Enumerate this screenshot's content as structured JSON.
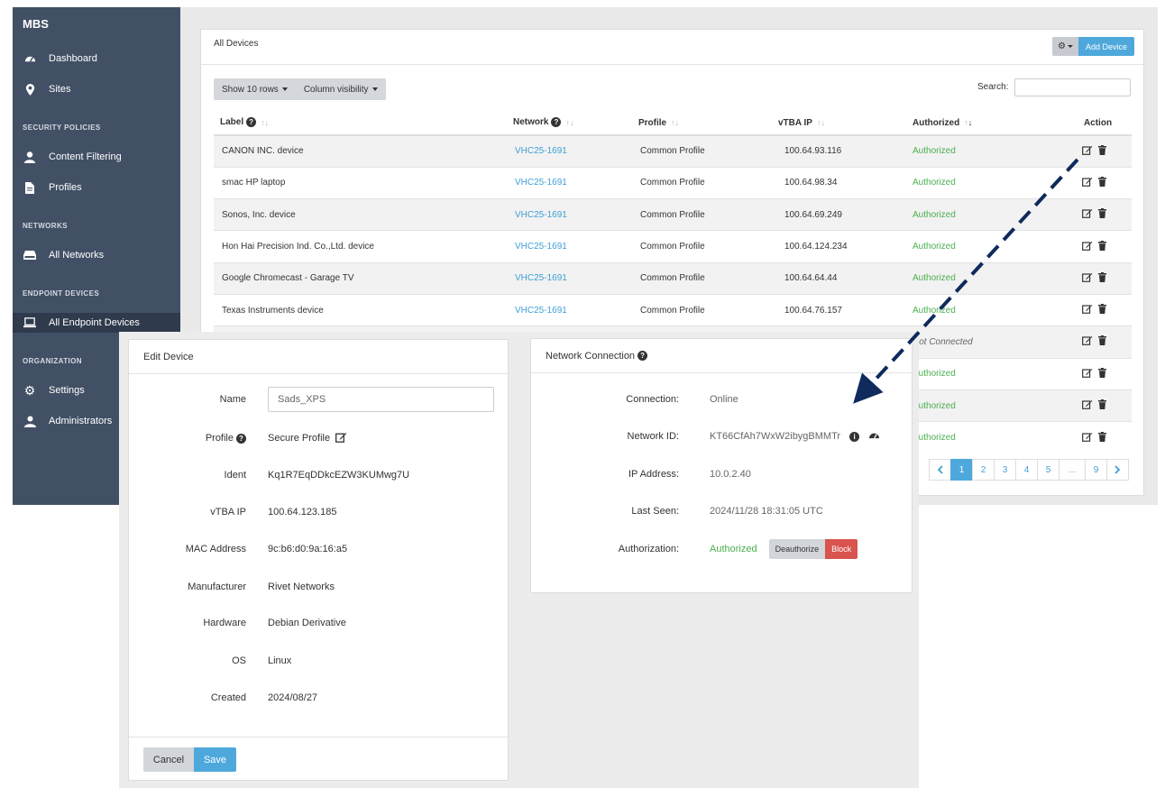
{
  "sidebar": {
    "brand": "MBS",
    "items": [
      {
        "label": "Dashboard",
        "icon": "dashboard-icon"
      },
      {
        "label": "Sites",
        "icon": "map-marker-icon"
      }
    ],
    "sections": [
      {
        "title": "SECURITY POLICIES",
        "items": [
          {
            "label": "Content Filtering",
            "icon": "user-icon"
          },
          {
            "label": "Profiles",
            "icon": "file-icon"
          }
        ]
      },
      {
        "title": "NETWORKS",
        "items": [
          {
            "label": "All Networks",
            "icon": "hdd-icon"
          }
        ]
      },
      {
        "title": "ENDPOINT DEVICES",
        "items": [
          {
            "label": "All Endpoint Devices",
            "icon": "laptop-icon"
          }
        ]
      },
      {
        "title": "ORGANIZATION",
        "items": [
          {
            "label": "Settings",
            "icon": "gear-icon"
          },
          {
            "label": "Administrators",
            "icon": "users-icon"
          }
        ]
      }
    ]
  },
  "devices_panel": {
    "title": "All Devices",
    "add_label": "Add Device",
    "show_rows_label": "Show 10 rows",
    "column_visibility_label": "Column visibility",
    "search_label": "Search:",
    "columns": [
      "Label",
      "Network",
      "Profile",
      "vTBA IP",
      "Authorized",
      "Action"
    ],
    "rows": [
      {
        "label": "CANON INC. device",
        "network": "VHC25-1691",
        "profile": "Common Profile",
        "ip": "100.64.93.116",
        "auth": "Authorized"
      },
      {
        "label": "smac HP laptop",
        "network": "VHC25-1691",
        "profile": "Common Profile",
        "ip": "100.64.98.34",
        "auth": "Authorized"
      },
      {
        "label": "Sonos, Inc. device",
        "network": "VHC25-1691",
        "profile": "Common Profile",
        "ip": "100.64.69.249",
        "auth": "Authorized"
      },
      {
        "label": "Hon Hai Precision Ind. Co.,Ltd. device",
        "network": "VHC25-1691",
        "profile": "Common Profile",
        "ip": "100.64.124.234",
        "auth": "Authorized"
      },
      {
        "label": "Google Chromecast - Garage TV",
        "network": "VHC25-1691",
        "profile": "Common Profile",
        "ip": "100.64.64.44",
        "auth": "Authorized"
      },
      {
        "label": "Texas Instruments device",
        "network": "VHC25-1691",
        "profile": "Common Profile",
        "ip": "100.64.76.157",
        "auth": "Authorized"
      },
      {
        "label": "",
        "network": "",
        "profile": "",
        "ip": "",
        "auth": "Not Connected"
      },
      {
        "label": "",
        "network": "",
        "profile": "",
        "ip": "",
        "auth": "Authorized"
      },
      {
        "label": "",
        "network": "",
        "profile": "",
        "ip": "",
        "auth": "Authorized"
      },
      {
        "label": "",
        "network": "",
        "profile": "",
        "ip": "",
        "auth": "Authorized"
      }
    ],
    "pagination": [
      "1",
      "2",
      "3",
      "4",
      "5",
      "...",
      "9"
    ]
  },
  "edit_device": {
    "title": "Edit Device",
    "fields": [
      {
        "label": "Name",
        "value": "Sads_XPS"
      },
      {
        "label": "Profile",
        "value": "Secure Profile"
      },
      {
        "label": "Ident",
        "value": "Kq1R7EqDDkcEZW3KUMwg7U"
      },
      {
        "label": "vTBA IP",
        "value": "100.64.123.185"
      },
      {
        "label": "MAC Address",
        "value": "9c:b6:d0:9a:16:a5"
      },
      {
        "label": "Manufacturer",
        "value": "Rivet Networks"
      },
      {
        "label": "Hardware",
        "value": "Debian Derivative"
      },
      {
        "label": "OS",
        "value": "Linux"
      },
      {
        "label": "Created",
        "value": "2024/08/27"
      }
    ],
    "cancel_label": "Cancel",
    "save_label": "Save"
  },
  "network_connection": {
    "title": "Network Connection",
    "fields": [
      {
        "label": "Connection:",
        "value": "Online"
      },
      {
        "label": "Network ID:",
        "value": "KT66CfAh7WxW2ibygBMMTr"
      },
      {
        "label": "IP Address:",
        "value": "10.0.2.40"
      },
      {
        "label": "Last Seen:",
        "value": "2024/11/28 18:31:05 UTC"
      },
      {
        "label": "Authorization:",
        "value": "Authorized"
      }
    ],
    "deauthorize_label": "Deauthorize",
    "block_label": "Block"
  },
  "colors": {
    "sidebar": "#425065",
    "accent": "#4ea8dc",
    "success": "#4caf50",
    "danger": "#d9534f",
    "arrow": "#0f2a5c"
  }
}
